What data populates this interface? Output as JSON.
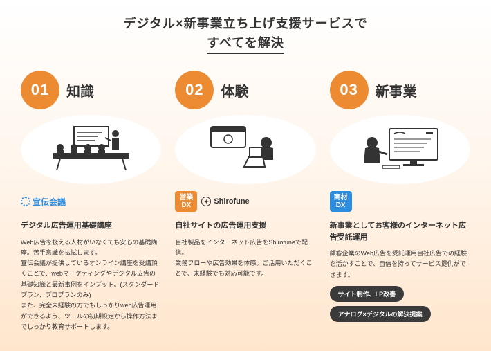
{
  "header": {
    "line1": "デジタル×新事業立ち上げ支援サービスで",
    "line2": "すべてを解決"
  },
  "columns": [
    {
      "num": "01",
      "title": "知識",
      "brand_senden": "宣伝会議",
      "subheading": "デジタル広告運用基礎講座",
      "body": "Web広告を扱える人材がいなくても安心の基礎講座。苦手意識を払拭します。\n宣伝会議が提供しているオンライン講座を受講頂くことで、webマーケティングやデジタル広告の基礎知識と最新事例をインプット。(スタンダードプラン、プロプランのみ)\nまた、完全未経験の方でもしっかりweb広告運用ができるよう、ツールの初期設定から操作方法までしっかり教育サポートします。"
    },
    {
      "num": "02",
      "title": "体験",
      "dx_label_top": "営業",
      "dx_label_bottom": "DX",
      "shirofune_label": "Shirofune",
      "subheading": "自社サイトの広告運用支援",
      "body": "自社製品をインターネット広告をShirofuneで配信。\n業務フローや広告効果を体感。ご活用いただくことで、未経験でも対応可能です。"
    },
    {
      "num": "03",
      "title": "新事業",
      "dx_label_top": "商材",
      "dx_label_bottom": "DX",
      "subheading": "新事業としてお客様のインターネット広告受託運用",
      "body": "顧客企業のWeb広告を受託運用自社広告での経験を活かすことで、自信を持ってサービス提供ができます。",
      "pills": [
        "サイト制作、LP改善",
        "アナログ×デジタルの解決提案"
      ]
    }
  ],
  "colors": {
    "accent_orange": "#ed8b32",
    "accent_blue": "#2d8de0",
    "pill_bg": "#3a3a3a",
    "text": "#333333"
  }
}
